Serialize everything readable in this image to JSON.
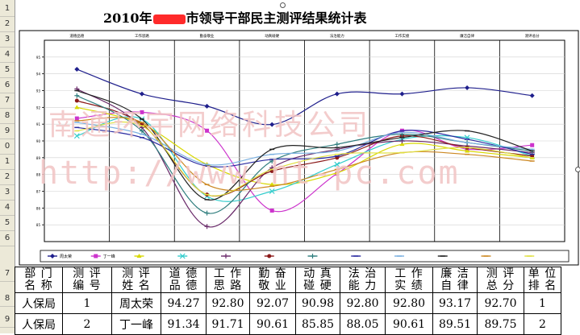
{
  "sheet": {
    "title_prefix": "2010年",
    "title_suffix": "市领导干部民主测评结果统计表",
    "row_numbers": [
      "1",
      "2",
      "3",
      "4",
      "5",
      "6",
      "7",
      "8",
      "9",
      "0",
      "1",
      "2",
      "3",
      "4",
      "5",
      "6",
      "7",
      "8",
      "9"
    ]
  },
  "watermark": {
    "line1": "南通环宇网络科技公司",
    "line2": "http://www.ht-pc.com"
  },
  "chart_data": {
    "type": "line",
    "categories": [
      "道德品德",
      "工作思路",
      "勤奋敬业",
      "动真碰硬",
      "法治能力",
      "工作实绩",
      "廉洁自律",
      "测评总分"
    ],
    "ylim": [
      84,
      96
    ],
    "yticks": [
      85,
      86,
      87,
      88,
      89,
      90,
      91,
      92,
      93,
      94,
      95
    ],
    "grid": true,
    "legend_position": "bottom",
    "series": [
      {
        "name": "周太荣",
        "color": "#1f1f8c",
        "marker": "diamond",
        "values": [
          94.27,
          92.8,
          92.07,
          90.98,
          92.8,
          92.8,
          93.17,
          92.7
        ]
      },
      {
        "name": "丁一峰",
        "color": "#cc33cc",
        "marker": "square",
        "values": [
          91.34,
          91.71,
          90.61,
          85.85,
          88.05,
          90.61,
          89.51,
          89.75
        ]
      },
      {
        "name": "",
        "color": "#d8d800",
        "marker": "triangle",
        "values": [
          92.0,
          91.0,
          88.6,
          87.4,
          88.1,
          89.8,
          89.4,
          89.0
        ]
      },
      {
        "name": "",
        "color": "#33cccc",
        "marker": "x",
        "values": [
          90.3,
          91.3,
          86.7,
          87.0,
          88.6,
          90.1,
          90.2,
          89.1
        ]
      },
      {
        "name": "",
        "color": "#6a2a6a",
        "marker": "star",
        "values": [
          93.1,
          90.8,
          84.9,
          88.4,
          89.5,
          90.0,
          89.7,
          89.3
        ]
      },
      {
        "name": "",
        "color": "#8b1a1a",
        "marker": "circle",
        "values": [
          92.4,
          91.0,
          86.8,
          88.2,
          89.0,
          90.3,
          89.6,
          89.1
        ]
      },
      {
        "name": "",
        "color": "#2e7d7d",
        "marker": "plus",
        "values": [
          92.7,
          90.6,
          85.7,
          88.8,
          89.8,
          90.4,
          89.9,
          89.4
        ]
      },
      {
        "name": "",
        "color": "#2a2aa0",
        "marker": "dash",
        "values": [
          90.8,
          90.2,
          88.5,
          88.9,
          89.1,
          90.6,
          90.1,
          89.2
        ]
      },
      {
        "name": "",
        "color": "#7ab0e0",
        "marker": "dash",
        "values": [
          91.1,
          90.4,
          88.6,
          89.2,
          89.4,
          90.5,
          89.9,
          89.5
        ]
      },
      {
        "name": "",
        "color": "#222222",
        "marker": "dash",
        "values": [
          93.0,
          91.3,
          86.5,
          89.5,
          89.6,
          90.2,
          90.6,
          89.4
        ]
      },
      {
        "name": "",
        "color": "#cc8822",
        "marker": "dash",
        "values": [
          91.2,
          91.1,
          87.4,
          87.3,
          88.3,
          89.3,
          89.2,
          88.8
        ]
      },
      {
        "name": "",
        "color": "#e0e040",
        "marker": "dash",
        "values": [
          90.6,
          90.9,
          86.8,
          88.3,
          89.2,
          89.3,
          89.6,
          89.0
        ]
      }
    ],
    "legend": [
      "周太荣",
      "丁一峰",
      "",
      "",
      "",
      "",
      "",
      "",
      "",
      "",
      "",
      ""
    ]
  },
  "table": {
    "headers": [
      "部 门\n名 称",
      "测 评\n编 号",
      "测 评\n姓 名",
      "道 德\n品 德",
      "工 作\n思 路",
      "勤 奋\n敬 业",
      "动 真\n碰 硬",
      "法 治\n能 力",
      "工 作\n实 绩",
      "廉 洁\n自 律",
      "测 评\n总 分",
      "单 位\n排 名"
    ],
    "rows": [
      [
        "人保局",
        "1",
        "周太荣",
        "94.27",
        "92.80",
        "92.07",
        "90.98",
        "92.80",
        "92.80",
        "93.17",
        "92.70",
        "1"
      ],
      [
        "人保局",
        "2",
        "丁一峰",
        "91.34",
        "91.71",
        "90.61",
        "85.85",
        "88.05",
        "90.61",
        "89.51",
        "89.75",
        "2"
      ]
    ]
  }
}
